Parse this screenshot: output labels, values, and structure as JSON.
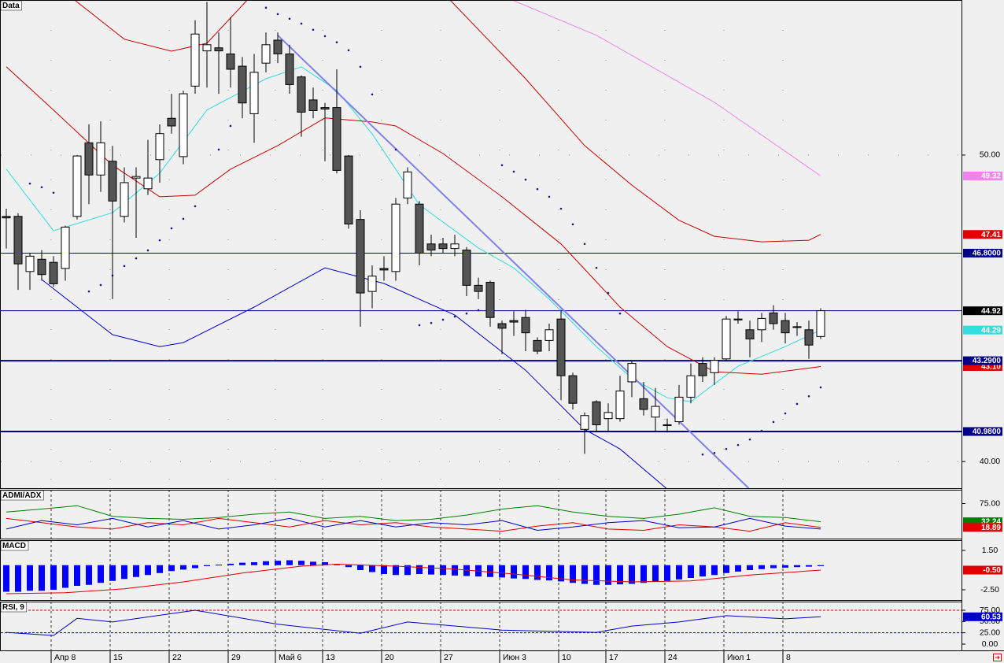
{
  "chart_data": [
    {
      "type": "candlestick",
      "title": "Data",
      "categories": [
        null,
        null,
        null,
        null,
        "Апр 8",
        null,
        null,
        null,
        null,
        "15",
        null,
        null,
        null,
        null,
        "22",
        null,
        null,
        null,
        null,
        "29",
        null,
        null,
        null,
        "Май 6",
        null,
        null,
        null,
        "13",
        null,
        null,
        null,
        null,
        "20",
        null,
        null,
        null,
        null,
        "27",
        null,
        null,
        null,
        null,
        "Июн 3",
        null,
        null,
        null,
        null,
        "10",
        null,
        null,
        null,
        "17",
        null,
        null,
        null,
        null,
        "24",
        null,
        null,
        null,
        null,
        "Июл 1",
        null,
        null,
        null,
        null,
        "8",
        null,
        null,
        null
      ],
      "open": [
        48.0,
        48.0,
        46.2,
        46.6,
        46.5,
        46.3,
        48.0,
        50.4,
        49.35,
        49.8,
        48.0,
        49.25,
        48.9,
        49.85,
        51.2,
        49.95,
        52.25,
        53.4,
        53.5,
        53.3,
        52.9,
        51.35,
        53.0,
        53.75,
        53.3,
        52.55,
        51.8,
        51.55,
        51.55,
        49.97,
        47.9,
        45.55,
        46.3,
        46.2,
        48.6,
        48.4,
        47.1,
        47.1,
        46.95,
        46.9,
        45.75,
        45.85,
        44.5,
        44.6,
        44.7,
        43.95,
        43.95,
        44.65,
        42.8,
        41.05,
        41.95,
        41.4,
        41.4,
        42.6,
        42.05,
        41.45,
        41.2,
        41.3,
        42.1,
        43.2,
        42.9,
        43.35,
        44.65,
        44.3,
        44.3,
        44.85,
        44.6,
        44.4,
        44.3,
        44.08
      ],
      "high": [
        48.25,
        48.1,
        46.8,
        46.9,
        46.7,
        47.7,
        50.0,
        51.0,
        51.1,
        50.3,
        49.6,
        49.6,
        50.5,
        51.0,
        52.0,
        52.1,
        54.4,
        55.0,
        54.0,
        54.5,
        53.2,
        53.3,
        54.0,
        54.0,
        53.6,
        52.6,
        52.2,
        51.7,
        52.8,
        50.0,
        48.2,
        46.4,
        46.7,
        48.6,
        49.6,
        48.5,
        47.4,
        47.3,
        47.4,
        47.0,
        46.0,
        45.9,
        44.6,
        44.9,
        44.95,
        44.05,
        44.5,
        44.95,
        42.9,
        41.6,
        42.0,
        41.9,
        42.8,
        43.3,
        42.6,
        42.4,
        41.4,
        42.5,
        43.2,
        43.4,
        43.4,
        44.75,
        44.9,
        44.6,
        44.85,
        45.1,
        44.85,
        44.55,
        44.6,
        45.0
      ],
      "low": [
        46.95,
        45.6,
        45.6,
        45.9,
        45.7,
        45.9,
        47.9,
        48.4,
        48.8,
        45.3,
        47.8,
        47.3,
        48.7,
        49.1,
        50.7,
        49.7,
        52.0,
        52.2,
        52.0,
        52.2,
        51.2,
        50.4,
        52.7,
        53.0,
        52.0,
        50.6,
        51.2,
        49.8,
        49.4,
        47.6,
        44.4,
        45.0,
        45.9,
        45.9,
        48.4,
        46.4,
        46.7,
        46.8,
        46.7,
        45.4,
        45.3,
        44.4,
        43.5,
        44.1,
        43.6,
        43.5,
        43.6,
        42.0,
        41.7,
        40.25,
        40.95,
        41.0,
        41.3,
        42.1,
        41.5,
        41.0,
        40.95,
        41.2,
        41.9,
        42.6,
        42.5,
        43.3,
        44.5,
        43.4,
        43.9,
        44.3,
        43.85,
        44.1,
        43.35,
        44.0
      ],
      "close": [
        47.95,
        46.45,
        46.7,
        46.1,
        45.8,
        47.65,
        49.97,
        49.35,
        50.4,
        48.5,
        49.1,
        49.3,
        49.25,
        50.7,
        50.95,
        52.0,
        53.95,
        53.6,
        53.4,
        52.8,
        51.7,
        52.7,
        53.6,
        53.3,
        52.3,
        51.4,
        51.45,
        51.5,
        49.5,
        47.75,
        45.5,
        46.05,
        46.25,
        48.4,
        49.45,
        46.8,
        46.9,
        46.95,
        47.1,
        45.75,
        45.55,
        44.7,
        44.35,
        44.55,
        44.2,
        43.6,
        44.3,
        42.8,
        41.9,
        41.5,
        41.2,
        41.6,
        42.3,
        43.2,
        41.7,
        41.8,
        41.2,
        42.1,
        42.8,
        42.8,
        43.3,
        44.65,
        44.62,
        44.0,
        44.67,
        44.5,
        44.2,
        44.38,
        43.8,
        44.92
      ],
      "up_color": "#ffffff",
      "down_color": "#555555",
      "ylim": [
        39.13,
        55.06
      ],
      "yticks": [
        {
          "value": 40,
          "label": "40.00"
        },
        {
          "value": 50,
          "label": "50.00"
        }
      ],
      "grid": true,
      "lines": [
        {
          "color": "#33dddd",
          "width": 1,
          "x": [
            0,
            4,
            9,
            13,
            17,
            22,
            25,
            28,
            31,
            35,
            40,
            43,
            46,
            50,
            53,
            56,
            58,
            62,
            66,
            69
          ],
          "values": [
            49.54,
            47.53,
            48.12,
            49.41,
            51.47,
            52.49,
            52.88,
            52.11,
            50.69,
            48.38,
            46.97,
            46.32,
            45.3,
            43.75,
            42.72,
            42.08,
            41.95,
            43.11,
            43.75,
            44.29
          ]
        },
        {
          "color": "#cc0000",
          "width": 1,
          "x": [
            0,
            4,
            9,
            13,
            16,
            19,
            23,
            27,
            31,
            33,
            37,
            42,
            47,
            52,
            56,
            60,
            64,
            69
          ],
          "values": [
            52.88,
            51.47,
            49.67,
            48.64,
            48.69,
            49.54,
            50.31,
            51.21,
            51.08,
            50.95,
            50.05,
            48.64,
            47.1,
            45.04,
            43.75,
            42.93,
            42.85,
            43.1
          ]
        },
        {
          "color": "#cc0000",
          "width": 1,
          "x": [
            5,
            10,
            14,
            17,
            21,
            30,
            37,
            44,
            49,
            53,
            57,
            60,
            64,
            68,
            69
          ],
          "values": [
            55.3,
            53.78,
            53.39,
            53.65,
            55.3,
            null,
            55.3,
            52.49,
            50.31,
            49.02,
            47.87,
            47.35,
            47.17,
            47.22,
            47.41
          ]
        },
        {
          "color": "#0000cc",
          "width": 1,
          "x": [
            3,
            9,
            13,
            15,
            21,
            27,
            32,
            38,
            44,
            49,
            52,
            56
          ],
          "values": [
            45.94,
            44.14,
            43.75,
            43.88,
            45.04,
            46.32,
            45.81,
            44.78,
            42.98,
            41.05,
            40.41,
            39.1
          ]
        },
        {
          "color": "#ee82ee",
          "width": 1,
          "x": [
            42,
            50,
            60,
            69
          ],
          "values": [
            55.2,
            53.91,
            51.72,
            49.32
          ]
        },
        {
          "color": "#8080ee",
          "width": 2,
          "x": [
            23,
            62.9
          ],
          "values": [
            53.91,
            39.13
          ]
        }
      ],
      "dots": {
        "color": "#1a1a80",
        "x": [
          2,
          3,
          4,
          7,
          8,
          9,
          10,
          11,
          12,
          13,
          14,
          15,
          16,
          18,
          19,
          22,
          23,
          24,
          25,
          26,
          27,
          28,
          29,
          30,
          31,
          33,
          35,
          36,
          37,
          38,
          39,
          40,
          42,
          43,
          44,
          45,
          46,
          47,
          48,
          49,
          50,
          51,
          52,
          59,
          60,
          61,
          62,
          63,
          64,
          65,
          66,
          67,
          68,
          69
        ],
        "values": [
          49.07,
          48.95,
          48.77,
          45.55,
          45.76,
          46.07,
          46.38,
          46.63,
          46.89,
          47.22,
          47.61,
          47.92,
          48.33,
          50.18,
          50.95,
          54.81,
          54.6,
          54.45,
          54.29,
          54.09,
          53.88,
          53.68,
          53.42,
          52.88,
          51.98,
          50.18,
          44.45,
          44.52,
          44.63,
          44.73,
          44.83,
          44.94,
          49.67,
          49.46,
          49.2,
          48.89,
          48.64,
          48.25,
          47.74,
          47.1,
          46.32,
          45.5,
          44.83,
          40.23,
          40.28,
          40.41,
          40.54,
          40.72,
          41.0,
          41.29,
          41.57,
          41.88,
          42.13,
          42.42
        ]
      },
      "hlines": [
        {
          "value": 46.8,
          "color": "#00008b",
          "width": 1
        },
        {
          "value": 44.92,
          "color": "#00008b",
          "width": 1
        },
        {
          "value": 43.29,
          "color": "#00008b",
          "width": 2
        },
        {
          "value": 40.98,
          "color": "#00008b",
          "width": 2
        }
      ],
      "price_labels": [
        {
          "value": 49.32,
          "label": "49.32",
          "color": "#ee82ee"
        },
        {
          "value": 47.41,
          "label": "47.41",
          "color": "#e00000"
        },
        {
          "value": 46.8,
          "label": "46.8000",
          "color": "#00008b"
        },
        {
          "value": 44.92,
          "label": "44.92",
          "color": "#000000"
        },
        {
          "value": 44.29,
          "label": "44.29",
          "color": "#33dddd"
        },
        {
          "value": 43.1,
          "label": "43.10",
          "color": "#e00000"
        },
        {
          "value": 43.29,
          "label": "43.2900",
          "color": "#00008b"
        },
        {
          "value": 40.98,
          "label": "40.9800",
          "color": "#00008b"
        }
      ]
    },
    {
      "type": "line",
      "title": "ADMI/ADX",
      "ylim": [
        0,
        100
      ],
      "yticks": [
        {
          "value": 75,
          "label": "75.00"
        }
      ],
      "series": [
        {
          "color": "#008000",
          "x": [
            0,
            3,
            6,
            9,
            12,
            15,
            18,
            21,
            24,
            27,
            30,
            33,
            36,
            39,
            42,
            45,
            48,
            51,
            54,
            57,
            60,
            63,
            66,
            69
          ],
          "values": [
            55,
            62,
            70,
            45,
            40,
            38,
            42,
            50,
            55,
            40,
            45,
            35,
            38,
            48,
            62,
            70,
            55,
            45,
            40,
            50,
            65,
            45,
            42,
            32.24
          ]
        },
        {
          "color": "#e00000",
          "x": [
            0,
            3,
            6,
            9,
            12,
            15,
            18,
            21,
            24,
            27,
            30,
            33,
            36,
            39,
            42,
            45,
            48,
            51,
            54,
            57,
            60,
            63,
            66,
            69
          ],
          "values": [
            40,
            30,
            20,
            15,
            30,
            25,
            40,
            30,
            20,
            35,
            25,
            30,
            20,
            15,
            10,
            22,
            30,
            15,
            12,
            25,
            20,
            10,
            30,
            18.89
          ]
        },
        {
          "color": "#0000cc",
          "x": [
            0,
            3,
            6,
            9,
            12,
            15,
            18,
            21,
            24,
            27,
            30,
            33,
            36,
            39,
            42,
            45,
            48,
            51,
            54,
            57,
            60,
            63,
            66,
            69
          ],
          "values": [
            15,
            35,
            25,
            40,
            20,
            35,
            15,
            25,
            40,
            20,
            35,
            20,
            30,
            25,
            35,
            12,
            20,
            30,
            35,
            18,
            20,
            40,
            22,
            15
          ]
        }
      ],
      "price_labels": [
        {
          "value": 32.24,
          "label": "32.24",
          "color": "#008000"
        },
        {
          "value": 18.89,
          "label": "18.89",
          "color": "#e00000"
        }
      ]
    },
    {
      "type": "macd",
      "title": "MACD",
      "ylim": [
        -3.38,
        2.38
      ],
      "yticks": [
        {
          "value": 1.5,
          "label": "1.50"
        },
        {
          "value": -2.5,
          "label": "-2.50"
        }
      ],
      "bars": {
        "color": "#0000ff",
        "values": [
          -2.7,
          -2.7,
          -2.6,
          -2.6,
          -2.5,
          -2.3,
          -2.1,
          -2.0,
          -1.8,
          -1.6,
          -1.4,
          -1.2,
          -1.0,
          -0.8,
          -0.6,
          -0.45,
          -0.3,
          -0.1,
          0.05,
          0.15,
          0.25,
          0.3,
          0.4,
          0.45,
          0.5,
          0.45,
          0.35,
          0.3,
          0.1,
          -0.2,
          -0.5,
          -0.7,
          -0.9,
          -1.0,
          -1.0,
          -0.9,
          -0.95,
          -1.0,
          -1.05,
          -1.1,
          -1.15,
          -1.2,
          -1.25,
          -1.35,
          -1.4,
          -1.5,
          -1.55,
          -1.65,
          -1.8,
          -1.9,
          -2.0,
          -2.0,
          -1.95,
          -1.9,
          -1.8,
          -1.7,
          -1.6,
          -1.45,
          -1.3,
          -1.15,
          -1.0,
          -0.8,
          -0.65,
          -0.5,
          -0.4,
          -0.3,
          -0.25,
          -0.2,
          -0.15,
          -0.1
        ]
      },
      "series": [
        {
          "color": "#e00000",
          "x": [
            0,
            5,
            10,
            15,
            20,
            25,
            28,
            33,
            38,
            43,
            48,
            53,
            58,
            63,
            69
          ],
          "values": [
            -2.9,
            -2.8,
            -2.4,
            -1.7,
            -0.8,
            -0.1,
            0.1,
            -0.1,
            -0.4,
            -0.9,
            -1.5,
            -1.7,
            -1.6,
            -1.0,
            -0.5
          ]
        }
      ],
      "price_labels": [
        {
          "value": -0.5,
          "label": "-0.50",
          "color": "#e00000"
        }
      ]
    },
    {
      "type": "line",
      "title": "RSI, 9",
      "ylim": [
        -13.95,
        87.2
      ],
      "yticks": [
        {
          "value": 75,
          "label": "75.00"
        },
        {
          "value": 50,
          "label": "50.00"
        },
        {
          "value": 25,
          "label": "25.00"
        },
        {
          "value": 0,
          "label": "0.00"
        }
      ],
      "hlines": [
        {
          "value": 75,
          "color": "#e00000",
          "width": 1
        },
        {
          "value": 25,
          "color": "#0000cc",
          "width": 1
        }
      ],
      "series": [
        {
          "color": "#0000cc",
          "x": [
            0,
            4,
            6,
            9,
            16,
            23,
            30,
            34,
            42,
            50,
            53,
            57,
            61,
            66,
            69
          ],
          "values": [
            26,
            19,
            57,
            49,
            75,
            44,
            24,
            49,
            31,
            26,
            40,
            49,
            63,
            56,
            60.53
          ]
        }
      ],
      "price_labels": [
        {
          "value": 60.53,
          "label": "60.53",
          "color": "#0000cc"
        }
      ]
    }
  ]
}
